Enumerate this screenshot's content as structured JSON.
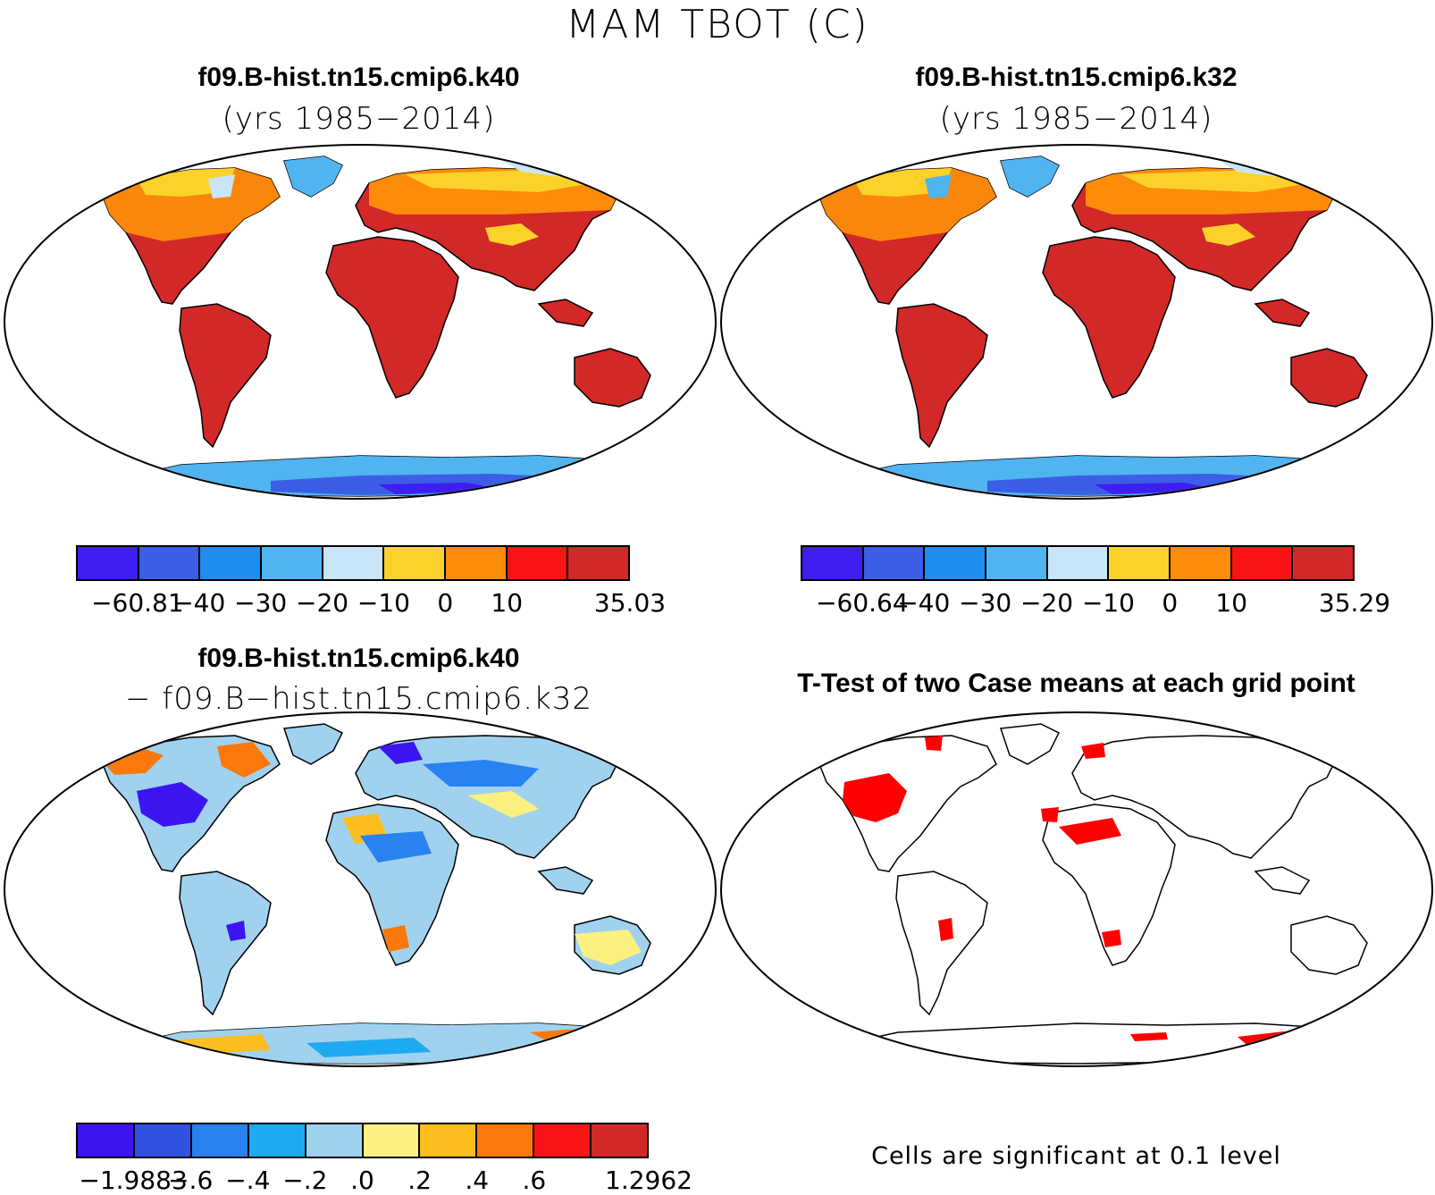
{
  "main_title": "MAM TBOT (C)",
  "panels": {
    "top_left": {
      "title_line1": "f09.B-hist.tn15.cmip6.k40",
      "title_line2": "(yrs 1985−2014)"
    },
    "top_right": {
      "title_line1": "f09.B-hist.tn15.cmip6.k32",
      "title_line2": "(yrs 1985−2014)"
    },
    "bottom_left": {
      "title_line1": "f09.B-hist.tn15.cmip6.k40",
      "title_line2": "− f09.B−hist.tn15.cmip6.k32"
    },
    "bottom_right": {
      "title_line1": "T-Test of two Case means at each grid point",
      "footnote": "Cells are significant at 0.1 level"
    }
  },
  "colorbars": {
    "top_left": {
      "colors": [
        "#3e1ef0",
        "#3c5ee6",
        "#1e8cf0",
        "#50b4f0",
        "#c8e6f8",
        "#fcd22a",
        "#fc8c0a",
        "#f81414",
        "#d22828"
      ],
      "labels": [
        "−60.81",
        "−40",
        "−30",
        "−20",
        "−10",
        "0",
        "10",
        "35.03"
      ]
    },
    "top_right": {
      "colors": [
        "#3e1ef0",
        "#3c5ee6",
        "#1e8cf0",
        "#50b4f0",
        "#c8e6f8",
        "#fcd22a",
        "#fc8c0a",
        "#f81414",
        "#d22828"
      ],
      "labels": [
        "−60.64",
        "−40",
        "−30",
        "−20",
        "−10",
        "0",
        "10",
        "35.29"
      ]
    },
    "bottom_left": {
      "colors": [
        "#3c14f0",
        "#3250e0",
        "#2882f0",
        "#1eaaf0",
        "#a0d2f0",
        "#fcf080",
        "#fcbe1e",
        "#fc780a",
        "#f81414",
        "#d22828"
      ],
      "labels": [
        "−1.9883",
        "−.6",
        "−.4",
        "−.2",
        ".0",
        ".2",
        ".4",
        ".6",
        "1.2962"
      ]
    }
  },
  "legend_colors": {
    "significant": "#ff0000"
  }
}
